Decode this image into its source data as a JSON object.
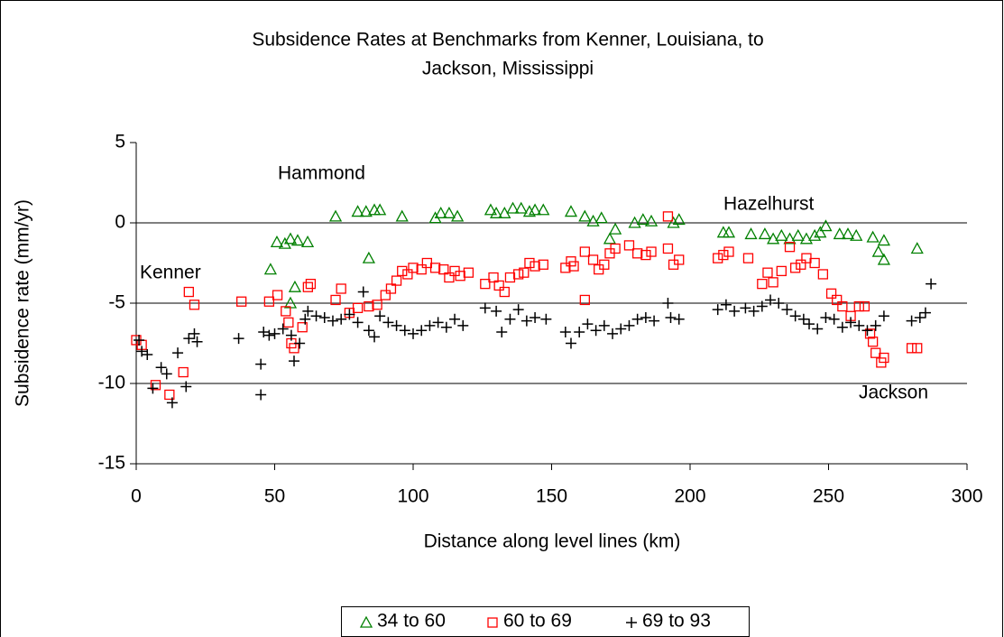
{
  "chart_data": {
    "type": "scatter",
    "title": [
      "Subsidence Rates at Benchmarks from Kenner, Louisiana,  to",
      "Jackson, Mississippi"
    ],
    "x_label": "Distance along level lines (km)",
    "y_label": "Subsidence rate (mm/yr)",
    "annotations": [
      "Hammond",
      "Kenner",
      "Hazelhurst",
      "Jackson"
    ],
    "xlim": [
      0,
      300
    ],
    "xticks": [
      0,
      50,
      100,
      150,
      200,
      250,
      300
    ],
    "ylim": [
      -15,
      5
    ],
    "yticks": [
      5,
      0,
      -5,
      -10,
      -15
    ],
    "grid": true,
    "legend": "bottom",
    "series": [
      {
        "name": "34 to 60",
        "color": "#008000",
        "marker": "triangle",
        "x": [
          48.5,
          50.8,
          53.7,
          55.7,
          58.3,
          61.9,
          57.3,
          55.7,
          84,
          72,
          80,
          83,
          86,
          88,
          96,
          108,
          110,
          113,
          116,
          128,
          130,
          133,
          136,
          139,
          142,
          144,
          147,
          157,
          162,
          165,
          168,
          171,
          173,
          180,
          183,
          186,
          194,
          196,
          212,
          214,
          222,
          227,
          230,
          233,
          236,
          239,
          242,
          245,
          247,
          249,
          254,
          257,
          260,
          266,
          268,
          270,
          270,
          282
        ],
        "values": [
          -2.9,
          -1.2,
          -1.3,
          -1.0,
          -1.1,
          -1.2,
          -4.0,
          -5.0,
          -2.2,
          0.4,
          0.7,
          0.7,
          0.8,
          0.8,
          0.4,
          0.3,
          0.6,
          0.6,
          0.4,
          0.8,
          0.6,
          0.6,
          0.9,
          0.9,
          0.7,
          0.8,
          0.8,
          0.7,
          0.4,
          0.1,
          0.3,
          -1.0,
          -0.4,
          0.0,
          0.2,
          0.1,
          0.0,
          0.2,
          -0.6,
          -0.6,
          -0.7,
          -0.7,
          -1.0,
          -0.8,
          -1.0,
          -0.8,
          -1.0,
          -0.8,
          -0.6,
          -0.2,
          -0.7,
          -0.7,
          -0.8,
          -0.9,
          -1.8,
          -1.1,
          -2.3,
          -1.6
        ]
      },
      {
        "name": "60 to 69",
        "color": "#ff0000",
        "marker": "square",
        "x": [
          0,
          2,
          7,
          12,
          17,
          19,
          21,
          38,
          48,
          51,
          54,
          55,
          56,
          57,
          60,
          62,
          63,
          72,
          74,
          77,
          80,
          84,
          87,
          90,
          92,
          94,
          96,
          98,
          100,
          103,
          105,
          108,
          111,
          113,
          115,
          117,
          120,
          126,
          129,
          131,
          133,
          135,
          138,
          140,
          142,
          144,
          147,
          155,
          157,
          158,
          162,
          162,
          165,
          167,
          169,
          171,
          173,
          178,
          181,
          184,
          186,
          192,
          192,
          194,
          196,
          210,
          212,
          214,
          221,
          226,
          228,
          230,
          233,
          236,
          238,
          240,
          242,
          245,
          248,
          251,
          253,
          255,
          258,
          261,
          263,
          265,
          266,
          267,
          269,
          270,
          280,
          282
        ],
        "values": [
          -7.3,
          -7.6,
          -10.1,
          -10.7,
          -9.3,
          -4.3,
          -5.1,
          -4.9,
          -4.9,
          -4.5,
          -5.5,
          -6.2,
          -7.5,
          -7.8,
          -6.5,
          -4.0,
          -3.8,
          -4.8,
          -4.1,
          -5.6,
          -5.3,
          -5.2,
          -5.1,
          -4.5,
          -4.1,
          -3.6,
          -3.0,
          -3.2,
          -2.8,
          -2.9,
          -2.5,
          -2.8,
          -2.9,
          -3.4,
          -3.0,
          -3.3,
          -3.1,
          -3.8,
          -3.4,
          -3.9,
          -4.3,
          -3.4,
          -3.2,
          -3.1,
          -2.5,
          -2.7,
          -2.6,
          -2.8,
          -2.4,
          -2.7,
          -4.8,
          -1.8,
          -2.3,
          -2.9,
          -2.6,
          -1.9,
          -1.6,
          -1.4,
          -1.9,
          -2.0,
          -1.8,
          0.4,
          -1.6,
          -2.6,
          -2.3,
          -2.2,
          -2.0,
          -1.8,
          -2.2,
          -3.8,
          -3.1,
          -3.7,
          -3.0,
          -1.5,
          -2.8,
          -2.6,
          -2.2,
          -2.5,
          -3.2,
          -4.4,
          -4.8,
          -5.2,
          -5.8,
          -5.2,
          -5.2,
          -6.9,
          -7.4,
          -8.1,
          -8.7,
          -8.4,
          -7.8,
          -7.8
        ]
      },
      {
        "name": "69 to 93",
        "color": "#000000",
        "marker": "plus",
        "x": [
          1,
          2,
          4,
          6,
          9,
          11,
          13,
          15,
          18,
          19,
          21,
          22,
          37,
          45,
          45,
          46,
          48,
          50,
          53,
          56,
          57,
          59,
          61,
          62,
          65,
          68,
          71,
          74,
          77,
          80,
          82,
          84,
          86,
          88,
          91,
          94,
          97,
          100,
          103,
          106,
          109,
          112,
          115,
          118,
          126,
          130,
          132,
          135,
          138,
          141,
          144,
          148,
          155,
          157,
          160,
          163,
          166,
          169,
          172,
          175,
          178,
          181,
          184,
          187,
          192,
          193,
          196,
          210,
          213,
          216,
          220,
          223,
          226,
          229,
          232,
          235,
          238,
          241,
          243,
          246,
          249,
          252,
          255,
          258,
          261,
          264,
          267,
          270,
          280,
          283,
          285,
          287
        ],
        "values": [
          -7.3,
          -8.0,
          -8.2,
          -10.3,
          -9.0,
          -9.4,
          -11.2,
          -8.1,
          -10.2,
          -7.2,
          -6.9,
          -7.4,
          -7.2,
          -8.8,
          -10.7,
          -6.8,
          -7.0,
          -6.9,
          -6.6,
          -7.0,
          -8.6,
          -7.5,
          -6.0,
          -5.5,
          -5.8,
          -5.9,
          -6.1,
          -6.0,
          -5.7,
          -6.2,
          -4.3,
          -6.7,
          -7.1,
          -5.8,
          -6.2,
          -6.4,
          -6.7,
          -6.9,
          -6.7,
          -6.4,
          -6.2,
          -6.5,
          -6.0,
          -6.4,
          -5.3,
          -5.5,
          -6.8,
          -6.0,
          -5.4,
          -6.1,
          -5.9,
          -6.0,
          -6.8,
          -7.5,
          -6.8,
          -6.3,
          -6.7,
          -6.4,
          -6.9,
          -6.6,
          -6.4,
          -6.0,
          -5.9,
          -6.1,
          -5.0,
          -5.9,
          -6.0,
          -5.4,
          -5.1,
          -5.5,
          -5.3,
          -5.5,
          -5.2,
          -4.8,
          -5.0,
          -5.4,
          -5.8,
          -6.0,
          -6.3,
          -6.6,
          -5.9,
          -6.0,
          -6.5,
          -6.2,
          -6.4,
          -6.7,
          -6.4,
          -5.8,
          -6.1,
          -5.9,
          -5.6,
          -3.8
        ]
      }
    ]
  }
}
